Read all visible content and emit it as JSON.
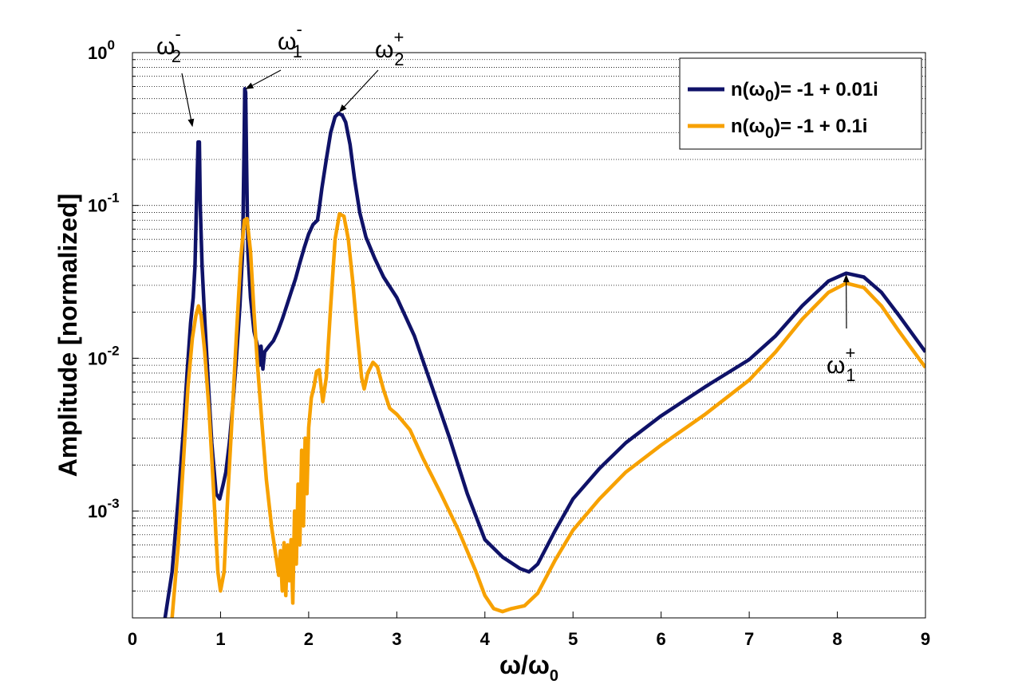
{
  "chart_data": {
    "type": "line",
    "xlabel": "ω/ω",
    "xlabel_sub": "0",
    "ylabel": "Amplitude [normalized]",
    "xlim": [
      0,
      9
    ],
    "ylim": [
      0.0002,
      1
    ],
    "yscale": "log",
    "x_ticks": [
      0,
      1,
      2,
      3,
      4,
      5,
      6,
      7,
      8,
      9
    ],
    "y_ticks": [
      {
        "value": 0.001,
        "base": "10",
        "exp": "-3"
      },
      {
        "value": 0.01,
        "base": "10",
        "exp": "-2"
      },
      {
        "value": 0.1,
        "base": "10",
        "exp": "-1"
      },
      {
        "value": 1,
        "base": "10",
        "exp": "0"
      }
    ],
    "grid": "y-major-and-minor-dotted",
    "legend_position": "top-right",
    "series": [
      {
        "name": "n(ω0)= -1 + 0.01i",
        "legend_pre": "n(ω",
        "legend_sub": "0",
        "legend_post": ")= -1 + 0.01i",
        "color": "#0f1268",
        "points": [
          [
            0.37,
            0.0002
          ],
          [
            0.45,
            0.0004
          ],
          [
            0.52,
            0.0012
          ],
          [
            0.58,
            0.0035
          ],
          [
            0.62,
            0.008
          ],
          [
            0.66,
            0.017
          ],
          [
            0.69,
            0.025
          ],
          [
            0.71,
            0.04
          ],
          [
            0.73,
            0.12
          ],
          [
            0.745,
            0.26
          ],
          [
            0.76,
            0.26
          ],
          [
            0.77,
            0.1
          ],
          [
            0.79,
            0.04
          ],
          [
            0.82,
            0.018
          ],
          [
            0.86,
            0.007
          ],
          [
            0.9,
            0.0028
          ],
          [
            0.95,
            0.0013
          ],
          [
            0.99,
            0.0012
          ],
          [
            1.03,
            0.0015
          ],
          [
            1.06,
            0.0018
          ],
          [
            1.1,
            0.0028
          ],
          [
            1.14,
            0.005
          ],
          [
            1.18,
            0.01
          ],
          [
            1.22,
            0.022
          ],
          [
            1.25,
            0.05
          ],
          [
            1.265,
            0.2
          ],
          [
            1.275,
            0.58
          ],
          [
            1.285,
            0.55
          ],
          [
            1.295,
            0.2
          ],
          [
            1.31,
            0.05
          ],
          [
            1.34,
            0.025
          ],
          [
            1.38,
            0.015
          ],
          [
            1.42,
            0.012
          ],
          [
            1.44,
            0.009
          ],
          [
            1.46,
            0.012
          ],
          [
            1.48,
            0.0085
          ],
          [
            1.5,
            0.011
          ],
          [
            1.55,
            0.012
          ],
          [
            1.6,
            0.013
          ],
          [
            1.65,
            0.015
          ],
          [
            1.7,
            0.018
          ],
          [
            1.75,
            0.022
          ],
          [
            1.8,
            0.027
          ],
          [
            1.85,
            0.033
          ],
          [
            1.9,
            0.042
          ],
          [
            1.95,
            0.053
          ],
          [
            2.0,
            0.065
          ],
          [
            2.05,
            0.075
          ],
          [
            2.1,
            0.08
          ],
          [
            2.12,
            0.095
          ],
          [
            2.15,
            0.13
          ],
          [
            2.2,
            0.2
          ],
          [
            2.25,
            0.3
          ],
          [
            2.3,
            0.38
          ],
          [
            2.34,
            0.4
          ],
          [
            2.38,
            0.39
          ],
          [
            2.42,
            0.35
          ],
          [
            2.47,
            0.25
          ],
          [
            2.52,
            0.15
          ],
          [
            2.58,
            0.09
          ],
          [
            2.65,
            0.062
          ],
          [
            2.75,
            0.045
          ],
          [
            2.85,
            0.034
          ],
          [
            3.0,
            0.025
          ],
          [
            3.2,
            0.014
          ],
          [
            3.4,
            0.0065
          ],
          [
            3.6,
            0.003
          ],
          [
            3.8,
            0.0013
          ],
          [
            4.0,
            0.00065
          ],
          [
            4.2,
            0.0005
          ],
          [
            4.4,
            0.00042
          ],
          [
            4.5,
            0.0004
          ],
          [
            4.6,
            0.00045
          ],
          [
            4.8,
            0.00075
          ],
          [
            5.0,
            0.0012
          ],
          [
            5.3,
            0.0019
          ],
          [
            5.6,
            0.0028
          ],
          [
            6.0,
            0.0042
          ],
          [
            6.5,
            0.0065
          ],
          [
            7.0,
            0.0098
          ],
          [
            7.3,
            0.014
          ],
          [
            7.6,
            0.022
          ],
          [
            7.9,
            0.032
          ],
          [
            8.1,
            0.036
          ],
          [
            8.3,
            0.034
          ],
          [
            8.5,
            0.027
          ],
          [
            8.7,
            0.019
          ],
          [
            9.0,
            0.011
          ]
        ]
      },
      {
        "name": "n(ω0)= -1 + 0.1i",
        "legend_pre": "n(ω",
        "legend_sub": "0",
        "legend_post": ")= -1 + 0.1i",
        "color": "#f7a100",
        "points": [
          [
            0.45,
            0.0002
          ],
          [
            0.52,
            0.0006
          ],
          [
            0.58,
            0.0022
          ],
          [
            0.63,
            0.0065
          ],
          [
            0.68,
            0.0135
          ],
          [
            0.72,
            0.019
          ],
          [
            0.75,
            0.022
          ],
          [
            0.78,
            0.019
          ],
          [
            0.82,
            0.011
          ],
          [
            0.87,
            0.0045
          ],
          [
            0.92,
            0.0014
          ],
          [
            0.97,
            0.0004
          ],
          [
            1.0,
            0.0003
          ],
          [
            1.04,
            0.0004
          ],
          [
            1.08,
            0.0012
          ],
          [
            1.13,
            0.004
          ],
          [
            1.18,
            0.014
          ],
          [
            1.23,
            0.045
          ],
          [
            1.27,
            0.08
          ],
          [
            1.3,
            0.082
          ],
          [
            1.34,
            0.05
          ],
          [
            1.38,
            0.02
          ],
          [
            1.42,
            0.009
          ],
          [
            1.47,
            0.0037
          ],
          [
            1.52,
            0.0016
          ],
          [
            1.58,
            0.00078
          ],
          [
            1.63,
            0.0005
          ],
          [
            1.66,
            0.00038
          ],
          [
            1.68,
            0.00055
          ],
          [
            1.7,
            0.0003
          ],
          [
            1.72,
            0.00062
          ],
          [
            1.74,
            0.00028
          ],
          [
            1.76,
            0.0006
          ],
          [
            1.78,
            0.00035
          ],
          [
            1.8,
            0.00065
          ],
          [
            1.82,
            0.00025
          ],
          [
            1.84,
            0.001
          ],
          [
            1.86,
            0.00045
          ],
          [
            1.88,
            0.0015
          ],
          [
            1.9,
            0.0006
          ],
          [
            1.92,
            0.0025
          ],
          [
            1.94,
            0.0008
          ],
          [
            1.96,
            0.003
          ],
          [
            1.98,
            0.0013
          ],
          [
            2.0,
            0.0035
          ],
          [
            2.03,
            0.0055
          ],
          [
            2.06,
            0.0065
          ],
          [
            2.09,
            0.0082
          ],
          [
            2.12,
            0.0084
          ],
          [
            2.16,
            0.0052
          ],
          [
            2.2,
            0.0075
          ],
          [
            2.25,
            0.022
          ],
          [
            2.3,
            0.06
          ],
          [
            2.35,
            0.088
          ],
          [
            2.4,
            0.085
          ],
          [
            2.45,
            0.06
          ],
          [
            2.5,
            0.032
          ],
          [
            2.55,
            0.015
          ],
          [
            2.6,
            0.0075
          ],
          [
            2.63,
            0.0063
          ],
          [
            2.67,
            0.008
          ],
          [
            2.73,
            0.0094
          ],
          [
            2.78,
            0.0088
          ],
          [
            2.85,
            0.0062
          ],
          [
            2.92,
            0.0047
          ],
          [
            3.0,
            0.0043
          ],
          [
            3.15,
            0.0034
          ],
          [
            3.3,
            0.0022
          ],
          [
            3.5,
            0.0013
          ],
          [
            3.7,
            0.00075
          ],
          [
            3.9,
            0.0004
          ],
          [
            4.0,
            0.00028
          ],
          [
            4.1,
            0.00023
          ],
          [
            4.2,
            0.00022
          ],
          [
            4.3,
            0.00023
          ],
          [
            4.45,
            0.00024
          ],
          [
            4.6,
            0.00029
          ],
          [
            4.8,
            0.00048
          ],
          [
            5.0,
            0.00075
          ],
          [
            5.3,
            0.0012
          ],
          [
            5.6,
            0.0018
          ],
          [
            6.0,
            0.0027
          ],
          [
            6.5,
            0.0043
          ],
          [
            7.0,
            0.0072
          ],
          [
            7.3,
            0.011
          ],
          [
            7.6,
            0.018
          ],
          [
            7.9,
            0.027
          ],
          [
            8.1,
            0.031
          ],
          [
            8.3,
            0.029
          ],
          [
            8.5,
            0.022
          ],
          [
            8.7,
            0.015
          ],
          [
            9.0,
            0.0087
          ]
        ]
      }
    ],
    "annotations": [
      {
        "base": "ω",
        "sub": "2",
        "sup": "-",
        "target": [
          0.68,
          0.33
        ]
      },
      {
        "base": "ω",
        "sub": "1",
        "sup": "-",
        "target": [
          1.29,
          0.58
        ]
      },
      {
        "base": "ω",
        "sub": "2",
        "sup": "+",
        "target": [
          2.35,
          0.41
        ]
      },
      {
        "base": "ω",
        "sub": "1",
        "sup": "+",
        "target": [
          8.1,
          0.035
        ]
      }
    ]
  }
}
